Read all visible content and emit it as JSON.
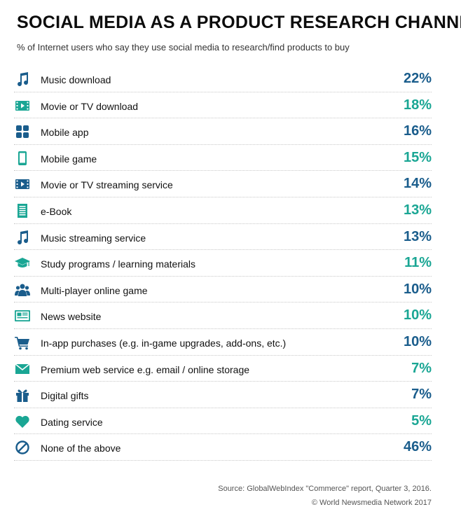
{
  "chart_data": {
    "type": "table",
    "title": "SOCIAL MEDIA AS A PRODUCT RESEARCH CHANNEL",
    "subtitle": "% of Internet users who say they use social media to research/find products to buy",
    "categories": [
      "Music download",
      "Movie or TV download",
      "Mobile app",
      "Mobile game",
      "Movie or TV streaming service",
      "e-Book",
      "Music streaming service",
      "Study programs / learning materials",
      "Multi-player online game",
      "News website",
      "In-app purchases (e.g. in-game upgrades, add-ons, etc.)",
      "Premium web service e.g. email / online storage",
      "Digital gifts",
      "Dating service",
      "None of the above"
    ],
    "values": [
      22,
      18,
      16,
      15,
      14,
      13,
      13,
      11,
      10,
      10,
      10,
      7,
      7,
      5,
      46
    ],
    "value_labels": [
      "22%",
      "18%",
      "16%",
      "15%",
      "14%",
      "13%",
      "13%",
      "11%",
      "10%",
      "10%",
      "10%",
      "7%",
      "7%",
      "5%",
      "46%"
    ],
    "icons": [
      "music-note-icon",
      "film-icon",
      "grid-icon",
      "phone-icon",
      "film-icon",
      "ebook-icon",
      "music-note-icon",
      "graduation-cap-icon",
      "people-icon",
      "newspaper-icon",
      "cart-icon",
      "envelope-icon",
      "gift-icon",
      "heart-icon",
      "none-icon"
    ],
    "colors": [
      "#1a5d8c",
      "#1aa694",
      "#1a5d8c",
      "#1aa694",
      "#1a5d8c",
      "#1aa694",
      "#1a5d8c",
      "#1aa694",
      "#1a5d8c",
      "#1aa694",
      "#1a5d8c",
      "#1aa694",
      "#1a5d8c",
      "#1aa694",
      "#1a5d8c"
    ]
  },
  "footer": {
    "source": "Source: GlobalWebIndex \"Commerce\" report, Quarter 3, 2016.",
    "copyright": "© World Newsmedia Network 2017"
  }
}
